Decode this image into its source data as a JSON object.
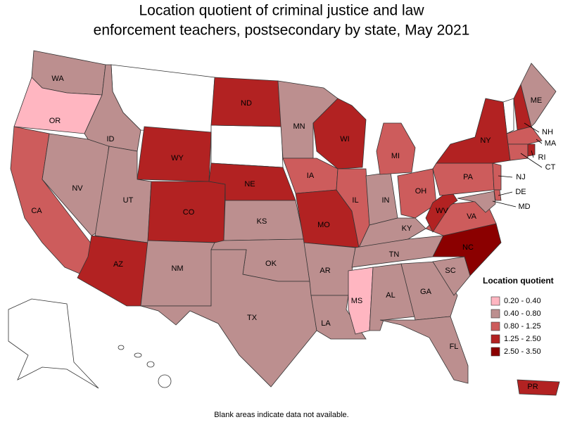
{
  "title": [
    "Location quotient of criminal justice and law",
    "enforcement teachers, postsecondary by state, May 2021"
  ],
  "legend": {
    "title": "Location quotient",
    "entries": [
      {
        "label": "0.20 - 0.40",
        "color": "#ffb6c1"
      },
      {
        "label": "0.40 - 0.80",
        "color": "#bc8f8f"
      },
      {
        "label": "0.80 - 1.25",
        "color": "#cd5c5c"
      },
      {
        "label": "1.25 - 2.50",
        "color": "#b22222"
      },
      {
        "label": "2.50 - 3.50",
        "color": "#8b0000"
      }
    ]
  },
  "states": [
    {
      "label": "WA",
      "color": "#bc8f8f"
    },
    {
      "label": "OR",
      "color": "#ffb6c1"
    },
    {
      "label": "CA",
      "color": "#cd5c5c"
    },
    {
      "label": "NV",
      "color": "#bc8f8f"
    },
    {
      "label": "ID",
      "color": "#bc8f8f"
    },
    {
      "label": "WY",
      "color": "#b22222"
    },
    {
      "label": "UT",
      "color": "#bc8f8f"
    },
    {
      "label": "AZ",
      "color": "#b22222"
    },
    {
      "label": "CO",
      "color": "#b22222"
    },
    {
      "label": "NM",
      "color": "#bc8f8f"
    },
    {
      "label": "ND",
      "color": "#b22222"
    },
    {
      "label": "NE",
      "color": "#b22222"
    },
    {
      "label": "KS",
      "color": "#bc8f8f"
    },
    {
      "label": "OK",
      "color": "#bc8f8f"
    },
    {
      "label": "TX",
      "color": "#bc8f8f"
    },
    {
      "label": "MN",
      "color": "#bc8f8f"
    },
    {
      "label": "WI",
      "color": "#b22222"
    },
    {
      "label": "IA",
      "color": "#cd5c5c"
    },
    {
      "label": "MO",
      "color": "#b22222"
    },
    {
      "label": "AR",
      "color": "#bc8f8f"
    },
    {
      "label": "LA",
      "color": "#bc8f8f"
    },
    {
      "label": "MS",
      "color": "#ffb6c1"
    },
    {
      "label": "IL",
      "color": "#cd5c5c"
    },
    {
      "label": "IN",
      "color": "#bc8f8f"
    },
    {
      "label": "MI",
      "color": "#cd5c5c"
    },
    {
      "label": "OH",
      "color": "#cd5c5c"
    },
    {
      "label": "KY",
      "color": "#bc8f8f"
    },
    {
      "label": "TN",
      "color": "#bc8f8f"
    },
    {
      "label": "AL",
      "color": "#bc8f8f"
    },
    {
      "label": "GA",
      "color": "#bc8f8f"
    },
    {
      "label": "FL",
      "color": "#bc8f8f"
    },
    {
      "label": "SC",
      "color": "#bc8f8f"
    },
    {
      "label": "NC",
      "color": "#8b0000"
    },
    {
      "label": "VA",
      "color": "#cd5c5c"
    },
    {
      "label": "WV",
      "color": "#b22222"
    },
    {
      "label": "PA",
      "color": "#cd5c5c"
    },
    {
      "label": "NY",
      "color": "#b22222"
    },
    {
      "label": "NJ",
      "color": "#cd5c5c"
    },
    {
      "label": "DE",
      "color": "#cd5c5c"
    },
    {
      "label": "MD",
      "color": "#bc8f8f"
    },
    {
      "label": "NH",
      "color": "#b22222"
    },
    {
      "label": "ME",
      "color": "#bc8f8f"
    },
    {
      "label": "MA",
      "color": "#cd5c5c"
    },
    {
      "label": "CT",
      "color": "#cd5c5c"
    },
    {
      "label": "RI",
      "color": "#b22222"
    },
    {
      "label": "PR",
      "color": "#b22222"
    }
  ],
  "footnote": "Blank areas indicate data not available."
}
